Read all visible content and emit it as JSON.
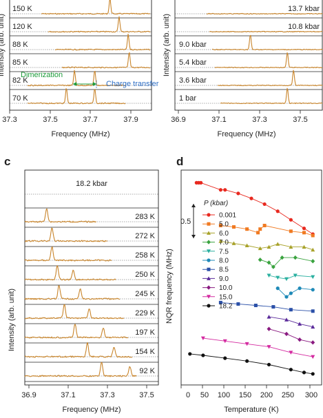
{
  "panels": {
    "a": {
      "xlabel": "Frequency (MHz)",
      "ylabel": "Intensity (arb. unit)",
      "xticks": [
        "37.3",
        "37.5",
        "37.7",
        "37.9"
      ],
      "xlim": [
        37.3,
        38.0
      ],
      "traces": [
        {
          "label": "150 K",
          "peaks": [
            37.795
          ]
        },
        {
          "label": "120 K",
          "peaks": [
            37.84
          ]
        },
        {
          "label": "88 K",
          "peaks": [
            37.885
          ]
        },
        {
          "label": "85 K",
          "peaks": [
            37.89
          ]
        },
        {
          "label": "82 K",
          "peaks": [
            37.62,
            37.72
          ]
        },
        {
          "label": "70 K",
          "peaks": [
            37.58,
            37.72
          ]
        }
      ],
      "annotations": {
        "dimerization": "Dimerization",
        "charge_transfer": "Charge transfer"
      }
    },
    "b": {
      "xlabel": "Frequency (MHz)",
      "ylabel": "Intensity (arb. unit)",
      "xticks": [
        "36.9",
        "37.1",
        "37.3",
        "37.5"
      ],
      "xlim": [
        36.9,
        37.6
      ],
      "traces": [
        {
          "label": "13.7 kbar",
          "peaks": [
            37.0
          ]
        },
        {
          "label": "10.8 kbar",
          "peaks": [
            37.04
          ]
        },
        {
          "label": "9.0 kbar",
          "peaks": [
            37.25
          ]
        },
        {
          "label": "5.4 kbar",
          "peaks": [
            37.43
          ]
        },
        {
          "label": "3.6 kbar",
          "peaks": [
            37.46
          ]
        },
        {
          "label": "1 bar",
          "peaks": [
            37.43
          ]
        }
      ]
    },
    "c": {
      "letter": "c",
      "title": "18.2 kbar",
      "xlabel": "Frequency (MHz)",
      "ylabel": "Intensity (arb. unit)",
      "xticks": [
        "36.9",
        "37.1",
        "37.3",
        "37.5"
      ],
      "xlim": [
        36.9,
        37.6
      ],
      "traces": [
        {
          "label": "283 K",
          "peaks": [
            37.0
          ]
        },
        {
          "label": "272 K",
          "peaks": [
            37.03
          ]
        },
        {
          "label": "258 K",
          "peaks": [
            37.03
          ]
        },
        {
          "label": "250 K",
          "peaks": [
            37.06,
            37.15
          ]
        },
        {
          "label": "245 K",
          "peaks": [
            37.07,
            37.19
          ]
        },
        {
          "label": "229 K",
          "peaks": [
            37.1,
            37.24
          ]
        },
        {
          "label": "197 K",
          "peaks": [
            37.16,
            37.32
          ]
        },
        {
          "label": "154 K",
          "peaks": [
            37.23,
            37.38
          ]
        },
        {
          "label": "92 K",
          "peaks": [
            37.31,
            37.47
          ]
        }
      ]
    },
    "d": {
      "letter": "d",
      "xlabel": "Temperature (K)",
      "ylabel": "NQR frequency (MHz)",
      "xticks": [
        "0",
        "50",
        "100",
        "150",
        "200",
        "250",
        "300"
      ],
      "xlim": [
        0,
        320
      ],
      "scalebar_label": "0.5",
      "legend_title": "P (kbar)"
    }
  },
  "chart_data": [
    {
      "type": "line",
      "title": "",
      "xlabel": "Frequency (MHz)",
      "ylabel": "Intensity (arb. unit)",
      "xlim": [
        37.3,
        38.0
      ],
      "series": [
        {
          "name": "150 K",
          "peak_positions_MHz": [
            37.795
          ]
        },
        {
          "name": "120 K",
          "peak_positions_MHz": [
            37.84
          ]
        },
        {
          "name": "88 K",
          "peak_positions_MHz": [
            37.885
          ]
        },
        {
          "name": "85 K",
          "peak_positions_MHz": [
            37.89
          ]
        },
        {
          "name": "82 K",
          "peak_positions_MHz": [
            37.62,
            37.72
          ]
        },
        {
          "name": "70 K",
          "peak_positions_MHz": [
            37.58,
            37.72
          ]
        }
      ]
    },
    {
      "type": "line",
      "title": "",
      "xlabel": "Frequency (MHz)",
      "ylabel": "Intensity (arb. unit)",
      "xlim": [
        36.9,
        37.6
      ],
      "series": [
        {
          "name": "13.7 kbar",
          "peak_positions_MHz": [
            37.0
          ]
        },
        {
          "name": "10.8 kbar",
          "peak_positions_MHz": [
            37.04
          ]
        },
        {
          "name": "9.0 kbar",
          "peak_positions_MHz": [
            37.25
          ]
        },
        {
          "name": "5.4 kbar",
          "peak_positions_MHz": [
            37.43
          ]
        },
        {
          "name": "3.6 kbar",
          "peak_positions_MHz": [
            37.46
          ]
        },
        {
          "name": "1 bar",
          "peak_positions_MHz": [
            37.43
          ]
        }
      ]
    },
    {
      "type": "line",
      "title": "18.2 kbar",
      "xlabel": "Frequency (MHz)",
      "ylabel": "Intensity (arb. unit)",
      "xlim": [
        36.9,
        37.6
      ],
      "series": [
        {
          "name": "283 K",
          "peak_positions_MHz": [
            37.0
          ]
        },
        {
          "name": "272 K",
          "peak_positions_MHz": [
            37.03
          ]
        },
        {
          "name": "258 K",
          "peak_positions_MHz": [
            37.03
          ]
        },
        {
          "name": "250 K",
          "peak_positions_MHz": [
            37.06,
            37.15
          ]
        },
        {
          "name": "245 K",
          "peak_positions_MHz": [
            37.07,
            37.19
          ]
        },
        {
          "name": "229 K",
          "peak_positions_MHz": [
            37.1,
            37.24
          ]
        },
        {
          "name": "197 K",
          "peak_positions_MHz": [
            37.16,
            37.32
          ]
        },
        {
          "name": "154 K",
          "peak_positions_MHz": [
            37.23,
            37.38
          ]
        },
        {
          "name": "92 K",
          "peak_positions_MHz": [
            37.31,
            37.47
          ]
        }
      ]
    },
    {
      "type": "scatter",
      "title": "",
      "xlabel": "Temperature (K)",
      "ylabel": "NQR frequency (MHz)",
      "xlim": [
        0,
        320
      ],
      "y_units": "relative offset, 0.5 MHz scale bar",
      "legend_title": "P (kbar)",
      "legend_position": "upper-left inside plot",
      "series": [
        {
          "name": "0.001",
          "color": "#e8291f",
          "marker": "circle",
          "points": [
            [
              35,
              2.6
            ],
            [
              40,
              2.6
            ],
            [
              45,
              2.6
            ],
            [
              90,
              2.5
            ],
            [
              100,
              2.5
            ],
            [
              130,
              2.45
            ],
            [
              160,
              2.38
            ],
            [
              190,
              2.3
            ],
            [
              220,
              2.2
            ],
            [
              250,
              2.08
            ],
            [
              280,
              1.96
            ],
            [
              300,
              1.88
            ]
          ]
        },
        {
          "name": "5.0",
          "color": "#f07a22",
          "marker": "square",
          "points": [
            [
              90,
              2.0
            ],
            [
              120,
              1.98
            ],
            [
              150,
              1.95
            ],
            [
              175,
              1.9
            ],
            [
              180,
              1.95
            ],
            [
              190,
              2.0
            ],
            [
              250,
              1.92
            ],
            [
              280,
              1.9
            ],
            [
              300,
              1.86
            ]
          ]
        },
        {
          "name": "6.0",
          "color": "#a8a22a",
          "marker": "triangle-up",
          "points": [
            [
              90,
              1.78
            ],
            [
              120,
              1.75
            ],
            [
              150,
              1.72
            ],
            [
              180,
              1.68
            ],
            [
              200,
              1.7
            ],
            [
              220,
              1.74
            ],
            [
              250,
              1.7
            ],
            [
              280,
              1.7
            ],
            [
              300,
              1.66
            ]
          ]
        },
        {
          "name": "7.0",
          "color": "#3aa33f",
          "marker": "diamond",
          "points": [
            [
              180,
              1.52
            ],
            [
              200,
              1.48
            ],
            [
              210,
              1.42
            ],
            [
              230,
              1.55
            ],
            [
              260,
              1.55
            ],
            [
              300,
              1.5
            ]
          ]
        },
        {
          "name": "7.5",
          "color": "#2bb0a0",
          "marker": "triangle-down",
          "points": [
            [
              200,
              1.3
            ],
            [
              220,
              1.27
            ],
            [
              240,
              1.25
            ],
            [
              260,
              1.3
            ],
            [
              300,
              1.28
            ]
          ]
        },
        {
          "name": "8.0",
          "color": "#1f8ab8",
          "marker": "circle",
          "points": [
            [
              220,
              1.12
            ],
            [
              240,
              1.0
            ],
            [
              250,
              1.05
            ],
            [
              270,
              1.12
            ],
            [
              300,
              1.1
            ]
          ]
        },
        {
          "name": "8.5",
          "color": "#2b50a8",
          "marker": "square",
          "points": [
            [
              90,
              0.92
            ],
            [
              130,
              0.9
            ],
            [
              170,
              0.88
            ],
            [
              210,
              0.86
            ],
            [
              250,
              0.82
            ],
            [
              300,
              0.8
            ]
          ]
        },
        {
          "name": "9.0",
          "color": "#5a2a9a",
          "marker": "triangle-up",
          "points": [
            [
              200,
              0.72
            ],
            [
              240,
              0.68
            ],
            [
              270,
              0.62
            ],
            [
              300,
              0.58
            ]
          ]
        },
        {
          "name": "10.0",
          "color": "#8a1a80",
          "marker": "diamond",
          "points": [
            [
              200,
              0.55
            ],
            [
              240,
              0.48
            ],
            [
              270,
              0.4
            ],
            [
              300,
              0.36
            ]
          ]
        },
        {
          "name": "15.0",
          "color": "#d42aa0",
          "marker": "triangle-down",
          "points": [
            [
              50,
              0.42
            ],
            [
              100,
              0.38
            ],
            [
              150,
              0.34
            ],
            [
              200,
              0.3
            ],
            [
              250,
              0.22
            ],
            [
              300,
              0.16
            ]
          ]
        },
        {
          "name": "18.2",
          "color": "#111111",
          "marker": "circle",
          "points": [
            [
              20,
              0.2
            ],
            [
              50,
              0.18
            ],
            [
              100,
              0.14
            ],
            [
              150,
              0.1
            ],
            [
              200,
              0.05
            ],
            [
              250,
              -0.02
            ],
            [
              280,
              -0.06
            ],
            [
              300,
              -0.08
            ]
          ]
        }
      ]
    }
  ]
}
